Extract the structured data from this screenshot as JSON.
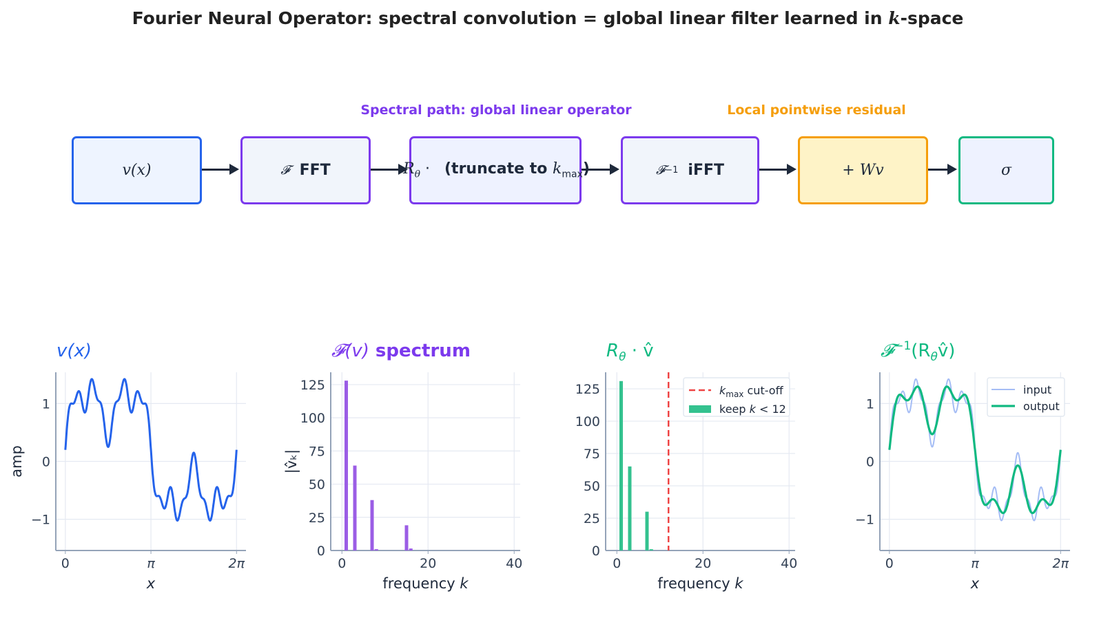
{
  "title": {
    "prefix": "Fourier Neural Operator: spectral convolution = global linear filter learned in ",
    "var": "k",
    "suffix": "-space"
  },
  "annotations": {
    "spectral": {
      "text": "Spectral path: global linear operator",
      "color": "#7c3aed"
    },
    "local": {
      "text": "Local pointwise residual",
      "color": "#f59e0b"
    }
  },
  "pipeline": {
    "input": {
      "label": "v(x)",
      "border": "#2563eb",
      "fill": "#eef4ff"
    },
    "fft": {
      "symbol": "𝓕",
      "label": "FFT",
      "border": "#7c3aed",
      "fill": "#f1f5fb"
    },
    "filter": {
      "symbol": "R",
      "sub": "θ",
      "dot": "·",
      "label": "(truncate to ",
      "kvar": "k",
      "ksub": "max",
      "close": ")",
      "border": "#7c3aed",
      "fill": "#eef2ff"
    },
    "ifft": {
      "symbol": "𝓕",
      "sup": "−1",
      "label": "iFFT",
      "border": "#7c3aed",
      "fill": "#f1f5fb"
    },
    "residual": {
      "label": "+ Wv",
      "border": "#f59e0b",
      "fill": "#fef3c7"
    },
    "activation": {
      "label": "σ",
      "border": "#10b981",
      "fill": "#eef2ff"
    }
  },
  "chart_data": [
    {
      "type": "line",
      "title": "v(x)",
      "title_color": "#2563eb",
      "xlabel": "x",
      "ylabel": "amp",
      "xticks": [
        "0",
        "π",
        "2π"
      ],
      "xtick_values": [
        0,
        3.14159,
        6.28319
      ],
      "yticks": [
        "−1",
        "0",
        "1"
      ],
      "ytick_values": [
        -1,
        0,
        1
      ],
      "xlim": [
        -0.35,
        6.63
      ],
      "ylim": [
        -1.54,
        1.54
      ],
      "grid": true,
      "series": [
        {
          "color": "#2563eb",
          "offset": 0.2,
          "terms": [
            {
              "k": 1,
              "amp": 1
            },
            {
              "k": 3,
              "amp": 0.5
            },
            {
              "k": 7,
              "amp": 0.3
            },
            {
              "k": 15,
              "amp": 0.15
            }
          ]
        }
      ]
    },
    {
      "type": "bar",
      "title_math": "𝓕(v)",
      "title": "spectrum",
      "title_color": "#7c3aed",
      "xlabel": "frequency ",
      "xlabel_var": "k",
      "ylabel": "|v̂ₖ|",
      "xticks": [
        "0",
        "20",
        "40"
      ],
      "xtick_values": [
        0,
        20,
        40
      ],
      "yticks": [
        "0",
        "25",
        "50",
        "75",
        "100",
        "125"
      ],
      "ytick_values": [
        0,
        25,
        50,
        75,
        100,
        125
      ],
      "xlim": [
        -2.6,
        41.4
      ],
      "ylim": [
        0,
        134.3
      ],
      "grid": true,
      "bar_color": "#9b5de5",
      "k": [
        1,
        3,
        7,
        8,
        15,
        16
      ],
      "values": [
        128,
        64,
        38,
        1,
        19,
        1.5
      ]
    },
    {
      "type": "bar",
      "title": "R",
      "title_sub": "θ",
      "title_rest": " · v̂",
      "title_color": "#10b981",
      "xlabel": "frequency ",
      "xlabel_var": "k",
      "xticks": [
        "0",
        "20",
        "40"
      ],
      "xtick_values": [
        0,
        20,
        40
      ],
      "yticks": [
        "0",
        "25",
        "50",
        "75",
        "100",
        "125"
      ],
      "ytick_values": [
        0,
        25,
        50,
        75,
        100,
        125
      ],
      "xlim": [
        -2.6,
        41.4
      ],
      "ylim": [
        0,
        137.8
      ],
      "grid": true,
      "bar_color": "#34c28f",
      "k": [
        1,
        3,
        7,
        8
      ],
      "values": [
        131,
        65,
        30,
        1
      ],
      "cutoff": {
        "k": 12,
        "color": "#ef4444"
      },
      "legend": {
        "placement": "top-right",
        "cutoff_var": "k",
        "cutoff_sub": "max",
        "cutoff_label": " cut-off",
        "keep_label": "keep ",
        "keep_var": "k",
        "keep_rest": " < 12"
      }
    },
    {
      "type": "line",
      "title": "𝓕",
      "title_sup": "−1",
      "title_rest": "(R",
      "title_sub": "θ",
      "title_end": "v̂)",
      "title_color": "#10b981",
      "xlabel": "x",
      "xticks": [
        "0",
        "π",
        "2π"
      ],
      "xtick_values": [
        0,
        3.14159,
        6.28319
      ],
      "yticks": [
        "−1",
        "0",
        "1"
      ],
      "ytick_values": [
        -1,
        0,
        1
      ],
      "xlim": [
        -0.35,
        6.63
      ],
      "ylim": [
        -1.54,
        1.54
      ],
      "grid": true,
      "legend": {
        "placement": "top-right",
        "input": "input",
        "output": "output"
      },
      "series": [
        {
          "name": "input",
          "color": "#a5bdf5",
          "offset": 0.2,
          "terms": [
            {
              "k": 1,
              "amp": 1
            },
            {
              "k": 3,
              "amp": 0.5
            },
            {
              "k": 7,
              "amp": 0.3
            },
            {
              "k": 15,
              "amp": 0.15
            }
          ]
        },
        {
          "name": "output",
          "color": "#10b981",
          "offset": 0.2,
          "terms": [
            {
              "k": 1,
              "amp": 1.02
            },
            {
              "k": 3,
              "amp": 0.51
            },
            {
              "k": 7,
              "amp": 0.24
            }
          ]
        }
      ]
    }
  ]
}
